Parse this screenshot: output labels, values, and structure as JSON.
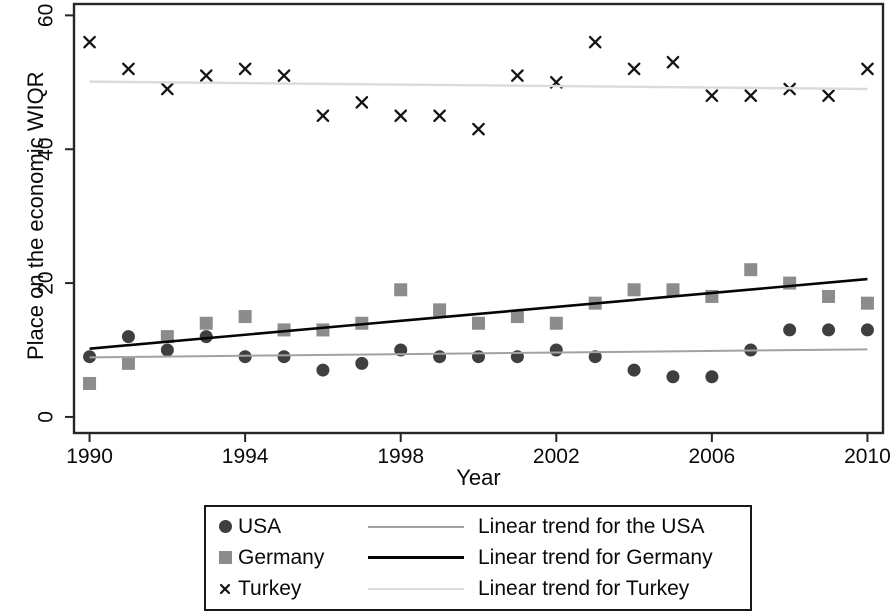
{
  "chart_data": {
    "type": "scatter",
    "title": "",
    "xlabel": "Year",
    "ylabel": "Place on the economic WIQR",
    "xlim": [
      1989.6,
      2010.4
    ],
    "ylim": [
      -2.4,
      61.7
    ],
    "xticks": [
      1990,
      1994,
      1998,
      2002,
      2006,
      2010
    ],
    "yticks": [
      0,
      20,
      40,
      60
    ],
    "grid": false,
    "legend_position": "bottom",
    "axis_color": "#262626",
    "text_color": "#0a0a0a",
    "x": [
      1990,
      1991,
      1992,
      1993,
      1994,
      1995,
      1996,
      1997,
      1998,
      1999,
      2000,
      2001,
      2002,
      2003,
      2004,
      2005,
      2006,
      2007,
      2008,
      2009,
      2010
    ],
    "series": [
      {
        "name": "USA",
        "marker": "circle",
        "color": "#3f3f3f",
        "values": [
          9,
          12,
          10,
          12,
          9,
          9,
          7,
          8,
          10,
          9,
          9,
          9,
          10,
          9,
          7,
          6,
          6,
          10,
          13,
          13,
          13
        ]
      },
      {
        "name": "Germany",
        "marker": "square",
        "color": "#8c8c8c",
        "values": [
          5,
          8,
          12,
          14,
          15,
          13,
          13,
          14,
          19,
          16,
          14,
          15,
          14,
          17,
          19,
          19,
          18,
          22,
          20,
          18,
          17
        ]
      },
      {
        "name": "Turkey",
        "marker": "x",
        "color": "#141414",
        "values": [
          56,
          52,
          49,
          51,
          52,
          51,
          45,
          47,
          45,
          45,
          43,
          51,
          50,
          56,
          52,
          53,
          48,
          48,
          49,
          48,
          52
        ]
      }
    ],
    "trends": [
      {
        "name": "Linear trend for the USA",
        "color": "#a2a2a2",
        "stroke_width": 2,
        "x": [
          1990,
          2010
        ],
        "y": [
          8.9,
          10.1
        ]
      },
      {
        "name": "Linear trend for Germany",
        "color": "#050505",
        "stroke_width": 2.6,
        "x": [
          1990,
          2010
        ],
        "y": [
          10.2,
          20.6
        ]
      },
      {
        "name": "Linear trend for Turkey",
        "color": "#dbdbdb",
        "stroke_width": 2.4,
        "x": [
          1990,
          2010
        ],
        "y": [
          50.1,
          49.0
        ]
      }
    ]
  }
}
